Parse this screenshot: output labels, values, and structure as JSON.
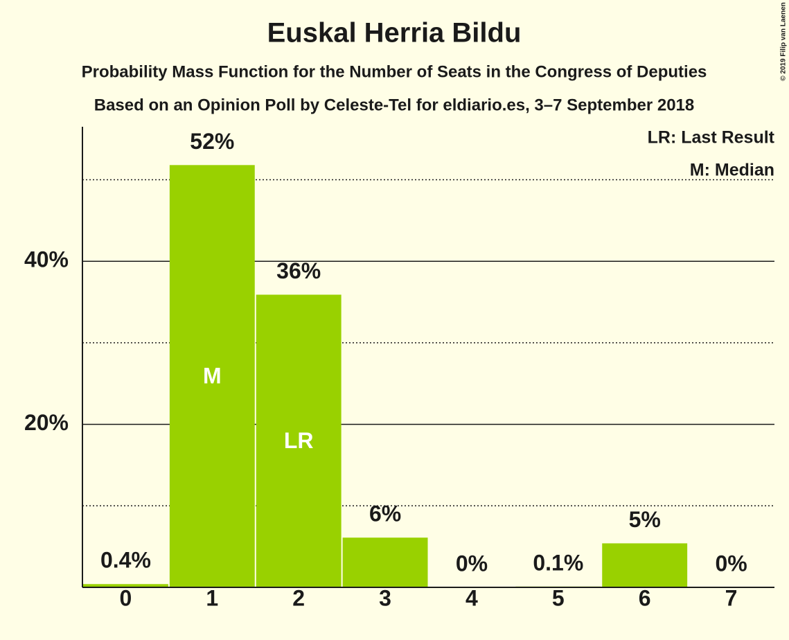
{
  "chart_data": {
    "type": "bar",
    "title": "Euskal Herria Bildu",
    "subtitle": "Probability Mass Function for the Number of Seats in the Congress of Deputies",
    "subtitle2": "Based on an Opinion Poll by Celeste-Tel for eldiario.es, 3–7 September 2018",
    "copyright": "© 2019 Filip van Laenen",
    "legend": [
      "LR: Last Result",
      "M: Median"
    ],
    "categories": [
      "0",
      "1",
      "2",
      "3",
      "4",
      "5",
      "6",
      "7"
    ],
    "values": [
      0.4,
      51.8,
      35.9,
      6.1,
      0,
      0.1,
      5.4,
      0
    ],
    "value_labels": [
      "0.4%",
      "52%",
      "36%",
      "6%",
      "0%",
      "0.1%",
      "5%",
      "0%"
    ],
    "bar_labels": [
      null,
      "M",
      "LR",
      null,
      null,
      null,
      null,
      null
    ],
    "color": "#99d100",
    "ylim": [
      0,
      56.5
    ],
    "yticks": [
      {
        "value": 20,
        "label": "20%"
      },
      {
        "value": 40,
        "label": "40%"
      }
    ],
    "minor_yticks": [
      10,
      30,
      50
    ],
    "grid": true
  }
}
